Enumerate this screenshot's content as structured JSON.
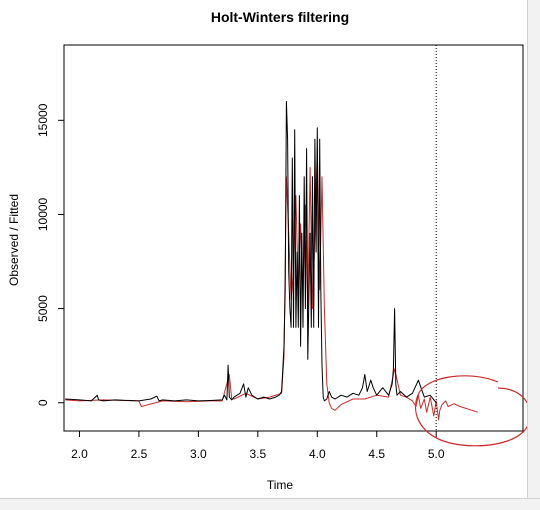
{
  "chart_data": {
    "type": "line",
    "title": "Holt-Winters filtering",
    "xlabel": "Time",
    "ylabel": "Observed / Fitted",
    "xlim": [
      1.87,
      5.73
    ],
    "ylim": [
      -1500,
      19000
    ],
    "x_ticks": [
      "2.0",
      "2.5",
      "3.0",
      "3.5",
      "4.0",
      "4.5",
      "5.0"
    ],
    "y_ticks": [
      "0",
      "5000",
      "10000",
      "15000"
    ],
    "grid": false,
    "legend": "none",
    "vline": {
      "x": 5.0,
      "style": "dotted"
    },
    "series": [
      {
        "color": "#000000",
        "x": [
          1.88,
          2.0,
          2.1,
          2.15,
          2.16,
          2.2,
          2.3,
          2.5,
          2.6,
          2.65,
          2.67,
          2.7,
          2.8,
          2.9,
          3.0,
          3.1,
          3.2,
          3.22,
          3.24,
          3.25,
          3.26,
          3.28,
          3.3,
          3.35,
          3.38,
          3.4,
          3.42,
          3.45,
          3.5,
          3.55,
          3.6,
          3.65,
          3.68,
          3.7,
          3.72,
          3.73,
          3.74,
          3.75,
          3.76,
          3.77,
          3.78,
          3.79,
          3.8,
          3.81,
          3.82,
          3.83,
          3.84,
          3.85,
          3.86,
          3.87,
          3.88,
          3.89,
          3.9,
          3.91,
          3.92,
          3.93,
          3.94,
          3.95,
          3.96,
          3.97,
          3.98,
          3.99,
          4.0,
          4.01,
          4.02,
          4.03,
          4.04,
          4.05,
          4.06,
          4.08,
          4.1,
          4.12,
          4.15,
          4.2,
          4.25,
          4.3,
          4.35,
          4.38,
          4.4,
          4.42,
          4.45,
          4.47,
          4.5,
          4.55,
          4.6,
          4.63,
          4.64,
          4.65,
          4.66,
          4.67,
          4.7,
          4.75,
          4.8,
          4.85,
          4.9,
          4.95,
          5.0
        ],
        "y": [
          200,
          150,
          100,
          400,
          150,
          100,
          150,
          100,
          200,
          350,
          100,
          150,
          100,
          150,
          100,
          120,
          150,
          400,
          150,
          2000,
          300,
          150,
          300,
          500,
          1000,
          300,
          800,
          400,
          200,
          300,
          200,
          300,
          400,
          600,
          3000,
          6000,
          16000,
          14000,
          7000,
          5000,
          4000,
          13000,
          4000,
          14500,
          4000,
          8000,
          4000,
          11000,
          3000,
          9000,
          4000,
          12000,
          5000,
          13500,
          2300,
          6000,
          9000,
          4000,
          12000,
          4000,
          14000,
          8000,
          14600,
          4000,
          14000,
          6000,
          2000,
          300,
          100,
          200,
          600,
          300,
          200,
          400,
          300,
          500,
          400,
          800,
          1500,
          600,
          1200,
          800,
          400,
          800,
          400,
          1000,
          1800,
          5000,
          1000,
          400,
          600,
          300,
          500,
          1200,
          300,
          400,
          0
        ]
      },
      {
        "color": "#cc2b2b",
        "x": [
          1.88,
          2.0,
          2.2,
          2.5,
          2.52,
          2.7,
          2.9,
          3.1,
          3.2,
          3.26,
          3.28,
          3.3,
          3.4,
          3.5,
          3.6,
          3.7,
          3.72,
          3.74,
          3.76,
          3.78,
          3.8,
          3.82,
          3.84,
          3.86,
          3.88,
          3.9,
          3.92,
          3.94,
          3.96,
          3.98,
          4.0,
          4.02,
          4.04,
          4.06,
          4.08,
          4.1,
          4.12,
          4.15,
          4.2,
          4.3,
          4.4,
          4.5,
          4.6,
          4.65,
          4.7,
          4.75,
          4.8,
          4.83,
          4.85,
          4.87,
          4.9,
          4.92,
          4.95,
          4.98,
          5.0,
          5.02,
          5.03,
          5.05,
          5.08,
          5.1,
          5.15,
          5.2,
          5.25,
          5.3,
          5.35
        ],
        "y": [
          150,
          100,
          150,
          100,
          -200,
          100,
          50,
          100,
          100,
          1500,
          200,
          200,
          500,
          200,
          300,
          500,
          2500,
          12000,
          9000,
          5500,
          7000,
          11000,
          6000,
          9500,
          6000,
          10500,
          5000,
          12500,
          5000,
          9000,
          13500,
          6000,
          12000,
          5000,
          1000,
          0,
          -300,
          -400,
          -100,
          200,
          200,
          400,
          300,
          1800,
          400,
          300,
          100,
          -200,
          400,
          -300,
          200,
          -500,
          300,
          -700,
          100,
          -900,
          -400,
          -100,
          100,
          -200,
          -50,
          -200,
          -300,
          -400,
          -500
        ]
      }
    ]
  },
  "annotation": {
    "color": "#cc2b2b",
    "shape": "hand-drawn circle"
  }
}
